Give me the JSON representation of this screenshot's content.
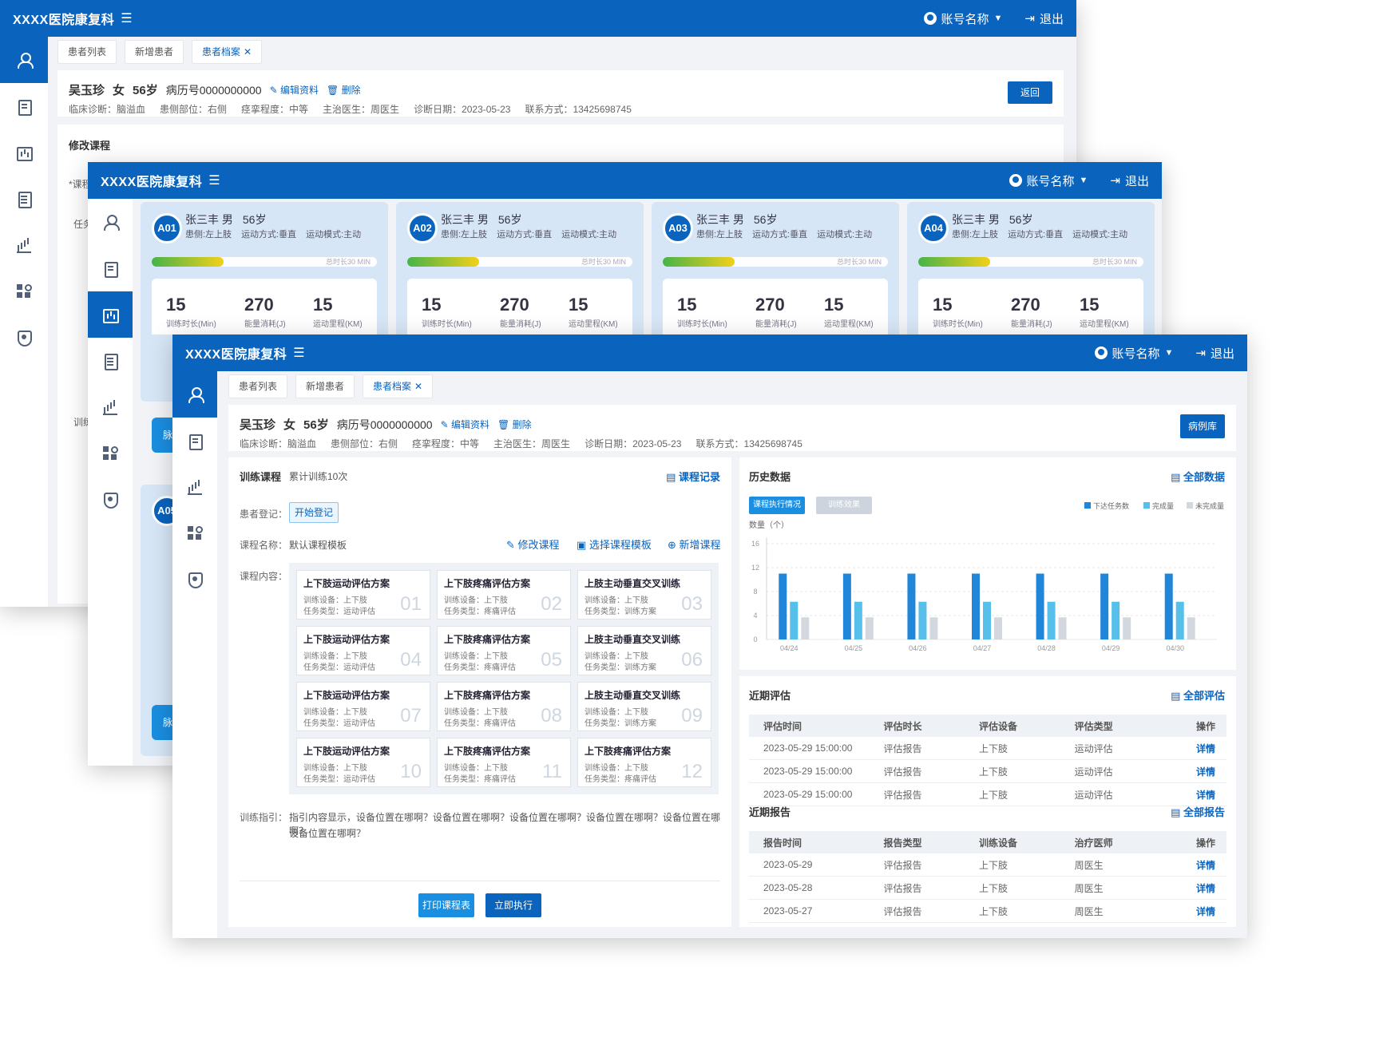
{
  "app": {
    "title": "XXXX医院康复科",
    "account": "账号名称",
    "logout": "退出"
  },
  "tabs": {
    "patient_list": "患者列表",
    "add_patient": "新增患者",
    "patient_file": "患者档案"
  },
  "patient": {
    "name": "吴玉珍",
    "gender": "女",
    "age": "56岁",
    "record": "病历号0000000000",
    "edit": "编辑资料",
    "delete": "删除",
    "diagnosis": "临床诊断：脑溢血",
    "side": "患侧部位：右侧",
    "spasm": "痉挛程度：中等",
    "doctor": "主治医生：周医生",
    "date": "诊断日期：2023-05-23",
    "contact": "联系方式：13425698745"
  },
  "back_window": {
    "back_button": "返回",
    "section_title": "修改课程",
    "req_label": "*课程",
    "task_label": "任务",
    "train_label": "训练"
  },
  "mid_window": {
    "cards": [
      {
        "badge": "A01",
        "name": "张三丰  男",
        "age": "56岁",
        "side": "患侧:左上肢",
        "mode": "运动方式:垂直",
        "pattern": "运动模式:主动",
        "progress": 0.32,
        "total": "总时长30 MIN",
        "duration": "15",
        "duration_label": "训练时长(Min)",
        "energy": "270",
        "energy_label": "能量消耗(J)",
        "distance": "15",
        "distance_label": "运动里程(KM)"
      },
      {
        "badge": "A02",
        "name": "张三丰  男",
        "age": "56岁",
        "side": "患侧:左上肢",
        "mode": "运动方式:垂直",
        "pattern": "运动模式:主动",
        "progress": 0.32,
        "total": "总时长30 MIN",
        "duration": "15",
        "duration_label": "训练时长(Min)",
        "energy": "270",
        "energy_label": "能量消耗(J)",
        "distance": "15",
        "distance_label": "运动里程(KM)"
      },
      {
        "badge": "A03",
        "name": "张三丰  男",
        "age": "56岁",
        "side": "患侧:左上肢",
        "mode": "运动方式:垂直",
        "pattern": "运动模式:主动",
        "progress": 0.32,
        "total": "总时长30 MIN",
        "duration": "15",
        "duration_label": "训练时长(Min)",
        "energy": "270",
        "energy_label": "能量消耗(J)",
        "distance": "15",
        "distance_label": "运动里程(KM)"
      },
      {
        "badge": "A04",
        "name": "张三丰  男",
        "age": "56岁",
        "side": "患侧:左上肢",
        "mode": "运动方式:垂直",
        "pattern": "运动模式:主动",
        "progress": 0.32,
        "total": "总时长30 MIN",
        "duration": "15",
        "duration_label": "训练时长(Min)",
        "energy": "270",
        "energy_label": "能量消耗(J)",
        "distance": "15",
        "distance_label": "运动里程(KM)"
      }
    ],
    "partial_badge": "A05",
    "partial_button": "脉"
  },
  "front_window": {
    "case_library": "病例库",
    "training": {
      "title": "训练课程",
      "count": "累计训练10次",
      "record_link": "课程记录",
      "register_label": "患者登记：",
      "register_button": "开始登记",
      "course_name_label": "课程名称：",
      "course_name": "默认课程模板",
      "modify": "修改课程",
      "choose_template": "选择课程模板",
      "add_course": "新增课程",
      "content_label": "课程内容：",
      "courses": [
        {
          "title": "上下肢运动评估方案",
          "device": "训练设备：上下肢",
          "type": "任务类型：运动评估",
          "num": "01"
        },
        {
          "title": "上下肢疼痛评估方案",
          "device": "训练设备：上下肢",
          "type": "任务类型：疼痛评估",
          "num": "02"
        },
        {
          "title": "上肢主动垂直交叉训练",
          "device": "训练设备：上下肢",
          "type": "任务类型：训练方案",
          "num": "03"
        },
        {
          "title": "上下肢运动评估方案",
          "device": "训练设备：上下肢",
          "type": "任务类型：运动评估",
          "num": "04"
        },
        {
          "title": "上下肢疼痛评估方案",
          "device": "训练设备：上下肢",
          "type": "任务类型：疼痛评估",
          "num": "05"
        },
        {
          "title": "上肢主动垂直交叉训练",
          "device": "训练设备：上下肢",
          "type": "任务类型：训练方案",
          "num": "06"
        },
        {
          "title": "上下肢运动评估方案",
          "device": "训练设备：上下肢",
          "type": "任务类型：运动评估",
          "num": "07"
        },
        {
          "title": "上下肢疼痛评估方案",
          "device": "训练设备：上下肢",
          "type": "任务类型：疼痛评估",
          "num": "08"
        },
        {
          "title": "上肢主动垂直交叉训练",
          "device": "训练设备：上下肢",
          "type": "任务类型：训练方案",
          "num": "09"
        },
        {
          "title": "上下肢运动评估方案",
          "device": "训练设备：上下肢",
          "type": "任务类型：运动评估",
          "num": "10"
        },
        {
          "title": "上下肢疼痛评估方案",
          "device": "训练设备：上下肢",
          "type": "任务类型：疼痛评估",
          "num": "11"
        },
        {
          "title": "上下肢疼痛评估方案",
          "device": "训练设备：上下肢",
          "type": "任务类型：疼痛评估",
          "num": "12"
        }
      ],
      "guide_label": "训练指引：",
      "guide_line1": "指引内容显示，设备位置在哪啊？设备位置在哪啊？设备位置在哪啊？设备位置在哪啊？设备位置在哪啊？",
      "guide_line2": "设备位置在哪啊？",
      "print_button": "打印课程表",
      "execute_button": "立即执行"
    },
    "history": {
      "title": "历史数据",
      "all_link": "全部数据",
      "tab_active": "课程执行情况",
      "tab_inactive": "训练效果"
    },
    "assessment": {
      "title": "近期评估",
      "all_link": "全部评估",
      "headers": [
        "评估时间",
        "评估时长",
        "评估设备",
        "评估类型",
        "操作"
      ],
      "rows": [
        [
          "2023-05-29 15:00:00",
          "评估报告",
          "上下肢",
          "运动评估",
          "详情"
        ],
        [
          "2023-05-29 15:00:00",
          "评估报告",
          "上下肢",
          "运动评估",
          "详情"
        ],
        [
          "2023-05-29 15:00:00",
          "评估报告",
          "上下肢",
          "运动评估",
          "详情"
        ]
      ]
    },
    "report": {
      "title": "近期报告",
      "all_link": "全部报告",
      "headers": [
        "报告时间",
        "报告类型",
        "训练设备",
        "治疗医师",
        "操作"
      ],
      "rows": [
        [
          "2023-05-29",
          "评估报告",
          "上下肢",
          "周医生",
          "详情"
        ],
        [
          "2023-05-28",
          "评估报告",
          "上下肢",
          "周医生",
          "详情"
        ],
        [
          "2023-05-27",
          "评估报告",
          "上下肢",
          "周医生",
          "详情"
        ]
      ]
    }
  },
  "chart_data": {
    "type": "bar",
    "ylabel": "数量（个）",
    "ylim": [
      0,
      16
    ],
    "yticks": [
      0,
      4,
      8,
      12,
      16
    ],
    "categories": [
      "04/24",
      "04/25",
      "04/26",
      "04/27",
      "04/28",
      "04/29",
      "04/30"
    ],
    "series": [
      {
        "name": "下达任务数",
        "color": "#1f86d9",
        "values": [
          11,
          11,
          11,
          11,
          11,
          11,
          11
        ]
      },
      {
        "name": "完成量",
        "color": "#56c0ea",
        "values": [
          6.3,
          6.3,
          6.3,
          6.3,
          6.3,
          6.3,
          6.3
        ]
      },
      {
        "name": "未完成量",
        "color": "#d3d8df",
        "values": [
          3.7,
          3.7,
          3.7,
          3.7,
          3.7,
          3.7,
          3.7
        ]
      }
    ],
    "grid": true,
    "legend": "top-right"
  },
  "colors": {
    "primary": "#0a63bc",
    "accent": "#1f86d9",
    "light": "#56c0ea"
  }
}
